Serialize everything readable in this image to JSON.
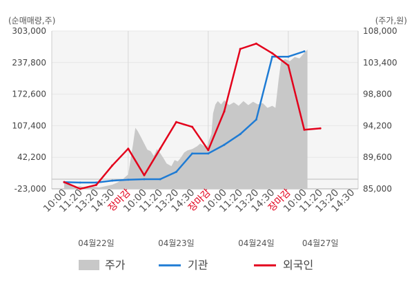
{
  "chart_data": {
    "type": "line",
    "left_axis_label": "(순매매량,주)",
    "right_axis_label": "(주가,원)",
    "left_ylim": [
      -23000,
      303000
    ],
    "right_ylim": [
      85000,
      108000
    ],
    "left_ticks": [
      "303,000",
      "237,800",
      "172,600",
      "107,400",
      "42,200",
      "-23,000"
    ],
    "right_ticks": [
      "108,000",
      "103,400",
      "98,800",
      "94,200",
      "89,600",
      "85,000"
    ],
    "x_ticks": [
      "10:00",
      "11:20",
      "13:20",
      "14:30",
      "장마감",
      "10:00",
      "11:20",
      "13:20",
      "14:30",
      "장마감",
      "10:00",
      "11:20",
      "13:20",
      "14:30",
      "장마감",
      "10:00",
      "11:20",
      "13:20",
      "14:30"
    ],
    "highlight_tick_label": "장마감",
    "dates": [
      "04월22일",
      "04월23일",
      "04월24일",
      "04월27일"
    ],
    "grid": true,
    "legend_position": "bottom",
    "series": [
      {
        "name": "주가",
        "kind": "area",
        "axis": "right",
        "color": "#c8c8c8",
        "points": [
          [
            0,
            86.2
          ],
          [
            0.3,
            85.6
          ],
          [
            0.6,
            85.2
          ],
          [
            1,
            85.4
          ],
          [
            1.4,
            85.1
          ],
          [
            1.8,
            85.3
          ],
          [
            2.2,
            85.2
          ],
          [
            2.6,
            85.4
          ],
          [
            3,
            85.6
          ],
          [
            3.3,
            85.9
          ],
          [
            3.6,
            86.3
          ],
          [
            4,
            87.1
          ],
          [
            4.3,
            91.5
          ],
          [
            4.45,
            93.9
          ],
          [
            4.6,
            93.4
          ],
          [
            4.8,
            92.5
          ],
          [
            5,
            91.6
          ],
          [
            5.2,
            90.7
          ],
          [
            5.4,
            90.5
          ],
          [
            5.6,
            89.8
          ],
          [
            5.8,
            90.8
          ],
          [
            6,
            90.2
          ],
          [
            6.2,
            89.5
          ],
          [
            6.4,
            88.7
          ],
          [
            6.7,
            88.3
          ],
          [
            6.9,
            89.2
          ],
          [
            7.1,
            89.0
          ],
          [
            7.3,
            89.6
          ],
          [
            7.5,
            90.3
          ],
          [
            7.7,
            90.6
          ],
          [
            8,
            90.8
          ],
          [
            8.3,
            91.2
          ],
          [
            8.5,
            91.6
          ],
          [
            8.7,
            91.3
          ],
          [
            8.9,
            91.0
          ],
          [
            9.05,
            92.1
          ],
          [
            9.2,
            93.0
          ],
          [
            9.3,
            96.0
          ],
          [
            9.45,
            97.3
          ],
          [
            9.6,
            97.8
          ],
          [
            9.8,
            97.3
          ],
          [
            10.0,
            97.9
          ],
          [
            10.3,
            97.2
          ],
          [
            10.6,
            97.6
          ],
          [
            10.9,
            97.1
          ],
          [
            11.2,
            97.8
          ],
          [
            11.5,
            97.2
          ],
          [
            11.8,
            97.7
          ],
          [
            12.1,
            97.3
          ],
          [
            12.4,
            97.5
          ],
          [
            12.7,
            96.8
          ],
          [
            13.0,
            97.1
          ],
          [
            13.2,
            96.8
          ],
          [
            13.4,
            101.0
          ],
          [
            13.55,
            103.6
          ],
          [
            13.8,
            103.9
          ],
          [
            14.1,
            103.6
          ],
          [
            14.4,
            104.2
          ],
          [
            14.7,
            104.0
          ],
          [
            15.0,
            104.8
          ],
          [
            15.2,
            105.3
          ]
        ]
      },
      {
        "name": "기관",
        "kind": "line",
        "axis": "left",
        "color": "#1e7bd4",
        "points": [
          [
            0,
            -9000
          ],
          [
            1,
            -10000
          ],
          [
            2,
            -10000
          ],
          [
            3,
            -6000
          ],
          [
            4,
            -4000
          ],
          [
            5,
            -3000
          ],
          [
            6,
            -3000
          ],
          [
            7,
            12000
          ],
          [
            8,
            50000
          ],
          [
            9,
            50000
          ],
          [
            10,
            68000
          ],
          [
            11,
            90000
          ],
          [
            12,
            120000
          ],
          [
            13,
            250000
          ],
          [
            14,
            250000
          ],
          [
            15,
            261000
          ]
        ]
      },
      {
        "name": "외국인",
        "kind": "line",
        "axis": "left",
        "color": "#e3001b",
        "points": [
          [
            0,
            -9000
          ],
          [
            1,
            -23000
          ],
          [
            2,
            -15000
          ],
          [
            3,
            25000
          ],
          [
            4,
            60000
          ],
          [
            5,
            5000
          ],
          [
            6,
            60000
          ],
          [
            7,
            115000
          ],
          [
            8,
            105000
          ],
          [
            9,
            57000
          ],
          [
            10,
            137000
          ],
          [
            11,
            266000
          ],
          [
            12,
            277000
          ],
          [
            13,
            257000
          ],
          [
            14,
            232000
          ],
          [
            15,
            99000
          ],
          [
            16,
            102000
          ]
        ]
      }
    ]
  },
  "legend": [
    {
      "label": "주가",
      "symbol": "area",
      "color": "#c8c8c8"
    },
    {
      "label": "기관",
      "symbol": "line",
      "color": "#1e7bd4"
    },
    {
      "label": "외국인",
      "symbol": "line",
      "color": "#e3001b"
    }
  ]
}
